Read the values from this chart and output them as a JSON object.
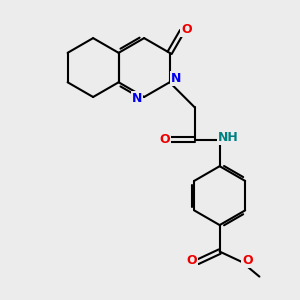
{
  "bg_color": "#ececec",
  "bond_color": "#000000",
  "bond_width": 1.5,
  "N_color": "#0000ee",
  "O_color": "#ee0000",
  "NH_color": "#008080",
  "figsize": [
    3.0,
    3.0
  ],
  "dpi": 100,
  "xlim": [
    0,
    10
  ],
  "ylim": [
    0,
    10
  ]
}
